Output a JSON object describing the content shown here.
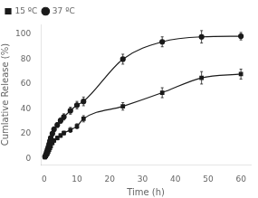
{
  "chart_data": {
    "type": "line",
    "xlabel": "Time (h)",
    "ylabel": "Cumlative Release (%)",
    "x": [
      0.25,
      0.5,
      0.75,
      1.0,
      1.25,
      1.5,
      1.75,
      2.0,
      2.5,
      3.0,
      4.0,
      5.0,
      6.0,
      8.0,
      10.0,
      12.0,
      24.0,
      36.0,
      48.0,
      60.0
    ],
    "series": [
      {
        "name": "15 ºC",
        "color": "#1a1a1a",
        "marker": "square",
        "values": [
          1.0,
          2.0,
          3.0,
          4.0,
          5.5,
          7.0,
          8.5,
          10.0,
          12.5,
          14.5,
          16.5,
          18.5,
          20.5,
          23.0,
          26.0,
          32.0,
          42.0,
          53.0,
          65.0,
          68.0
        ],
        "yerr": [
          0.3,
          0.4,
          0.4,
          0.5,
          0.6,
          0.7,
          0.8,
          1.0,
          1.2,
          1.3,
          1.5,
          1.5,
          1.5,
          2.0,
          2.0,
          2.5,
          3.0,
          4.0,
          5.0,
          4.0
        ]
      },
      {
        "name": "37 ºC",
        "color": "#1a1a1a",
        "marker": "circle",
        "values": [
          1.5,
          3.0,
          5.0,
          7.0,
          9.0,
          11.5,
          14.0,
          16.5,
          20.0,
          23.5,
          27.0,
          30.5,
          33.5,
          38.5,
          43.0,
          46.0,
          80.0,
          94.0,
          98.0,
          98.5
        ],
        "yerr": [
          0.3,
          0.5,
          0.6,
          0.7,
          0.8,
          1.0,
          1.2,
          1.5,
          1.8,
          2.0,
          2.0,
          2.2,
          2.5,
          2.8,
          3.0,
          3.5,
          4.0,
          4.0,
          5.0,
          3.0
        ]
      }
    ],
    "xlim": [
      -1,
      63
    ],
    "ylim": [
      -5,
      108
    ],
    "xticks": [
      0,
      10,
      20,
      30,
      40,
      50,
      60
    ],
    "yticks": [
      0,
      20,
      40,
      60,
      80,
      100
    ],
    "grid": false,
    "legend": "upper left"
  }
}
